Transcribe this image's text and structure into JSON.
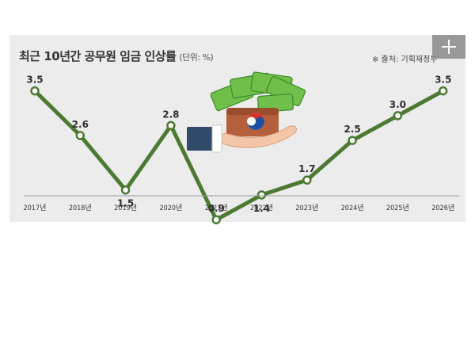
{
  "title": "최근 10년간 공무원 임금 인상률",
  "unit": "(단위: %)",
  "source": "※ 출처: 기획재정부",
  "colors": {
    "line": "#4d7a33",
    "panel": "#ececec",
    "marker_fill": "#ffffff"
  },
  "icons": {
    "expand": "plus-icon",
    "illustration": "hand-holding-wallet-with-cash-icon"
  },
  "chart_data": {
    "type": "line",
    "title": "최근 10년간 공무원 임금 인상률",
    "xlabel": "",
    "ylabel": "",
    "unit": "%",
    "categories": [
      "2017년",
      "2018년",
      "2019년",
      "2020년",
      "2021년",
      "2022년",
      "2023년",
      "2024년",
      "2025년",
      "2026년"
    ],
    "values": [
      3.5,
      2.6,
      1.5,
      2.8,
      0.9,
      1.4,
      1.7,
      2.5,
      3.0,
      3.5
    ],
    "value_labels": [
      "3.5",
      "2.6",
      "1.5",
      "2.8",
      "0.9",
      "1.4",
      "1.7",
      "2.5",
      "3.0",
      "3.5"
    ],
    "grid": false,
    "legend": "none"
  }
}
